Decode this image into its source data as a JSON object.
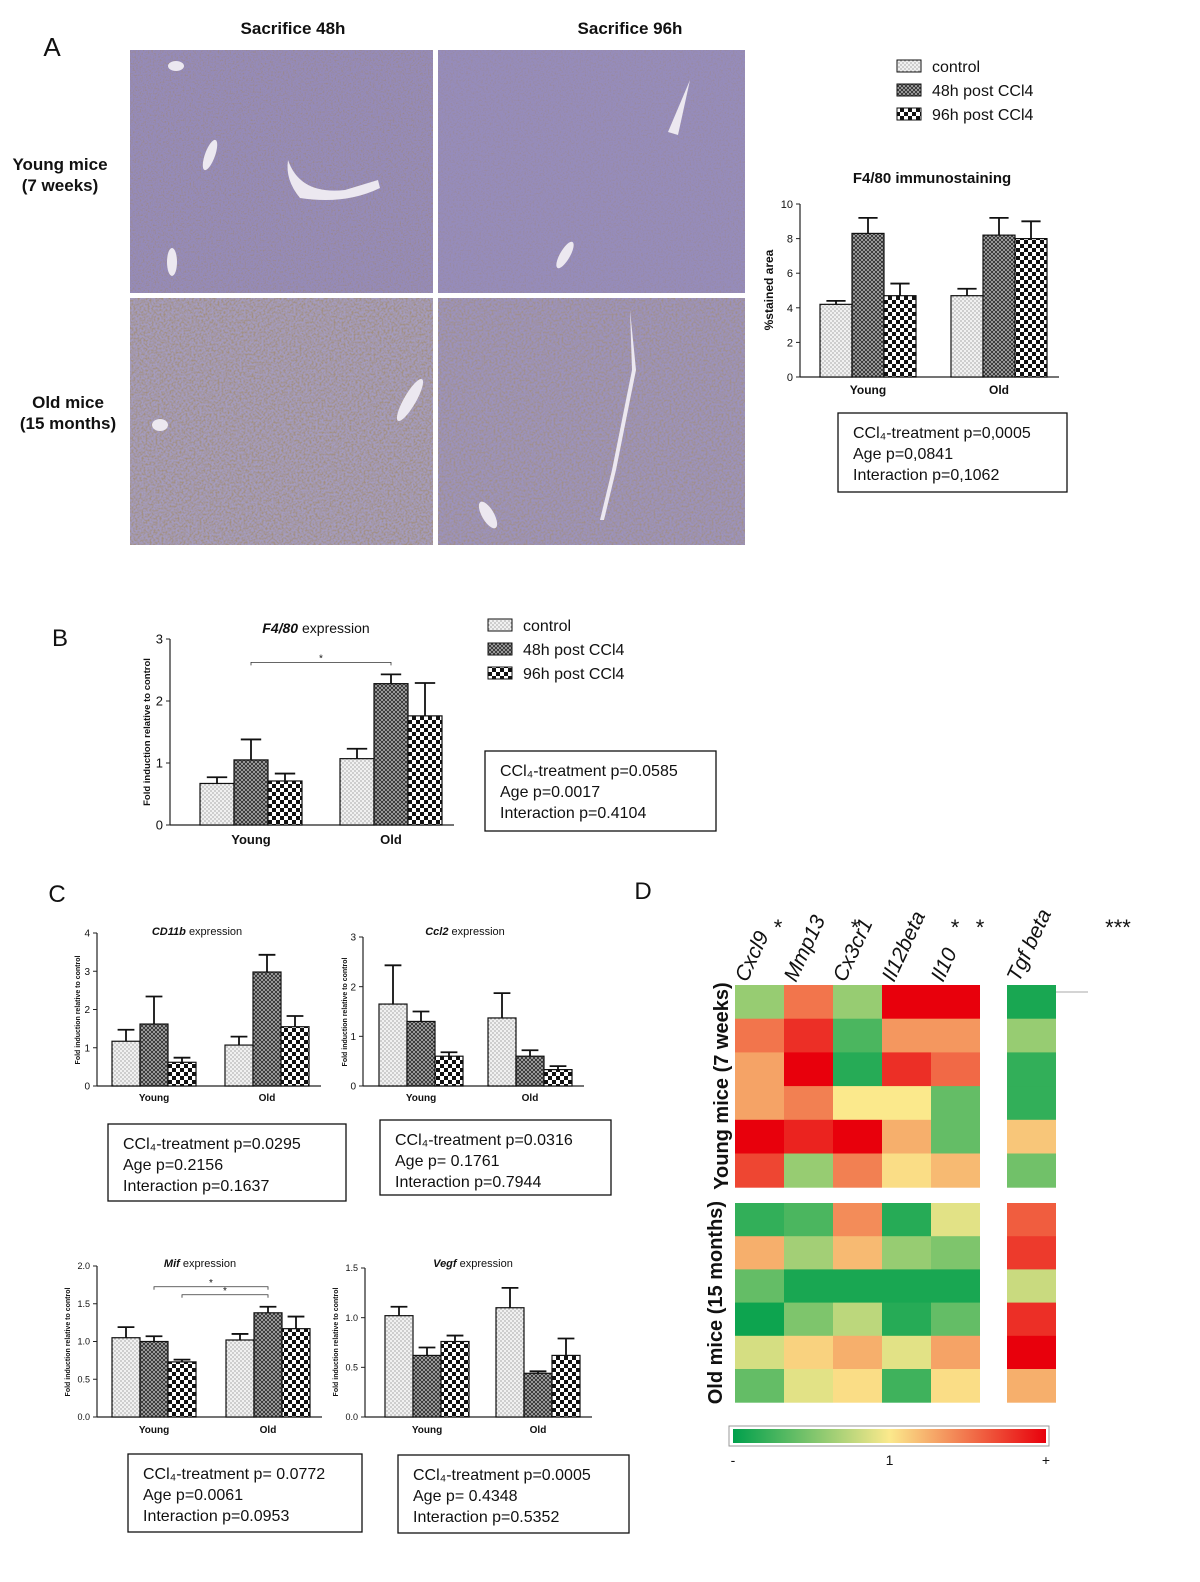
{
  "panel_labels": [
    "A",
    "B",
    "C",
    "D"
  ],
  "micrographs": {
    "columns": [
      "Sacrifice 48h",
      "Sacrifice 96h"
    ],
    "rows": [
      [
        "Young mice",
        "(7 weeks)"
      ],
      [
        "Old mice",
        "(15 months)"
      ]
    ]
  },
  "chart_data": [
    {
      "type": "bar",
      "title": "F4/80 immunostaining",
      "ylabel": "%stained area",
      "categories": [
        "Young",
        "Old"
      ],
      "series": [
        {
          "name": "control",
          "pattern": "dots",
          "values": [
            4.2,
            4.7
          ],
          "errors": [
            0.2,
            0.4
          ]
        },
        {
          "name": "48h post CCl4",
          "pattern": "cross",
          "values": [
            8.3,
            8.2
          ],
          "errors": [
            0.9,
            1.0
          ]
        },
        {
          "name": "96h post CCl4",
          "pattern": "checker",
          "values": [
            4.7,
            8.0
          ],
          "errors": [
            0.7,
            1.0
          ]
        }
      ],
      "legend": true,
      "ylim": [
        0,
        10
      ],
      "yticks": [
        0,
        2,
        4,
        6,
        8,
        10
      ],
      "annotations": [
        "CCl₄-treatment p=0,0005",
        "Age p=0,0841",
        "Interaction p=0,1062"
      ]
    },
    {
      "type": "bar",
      "title": {
        "gene": "F4/80",
        "text": "expression"
      },
      "ylabel": "Fold induction relative to control",
      "categories": [
        "Young",
        "Old"
      ],
      "series": [
        {
          "name": "control",
          "pattern": "dots",
          "values": [
            0.67,
            1.07
          ],
          "errors": [
            0.1,
            0.16
          ]
        },
        {
          "name": "48h post CCl4",
          "pattern": "cross",
          "values": [
            1.05,
            2.28
          ],
          "errors": [
            0.33,
            0.15
          ]
        },
        {
          "name": "96h post CCl4",
          "pattern": "checker",
          "values": [
            0.71,
            1.76
          ],
          "errors": [
            0.12,
            0.53
          ]
        }
      ],
      "legend": true,
      "ylim": [
        0,
        3
      ],
      "yticks": [
        0,
        1,
        2,
        3
      ],
      "significance": [
        {
          "from": [
            0,
            1
          ],
          "to": [
            1,
            1
          ],
          "label": "*"
        }
      ],
      "annotations": [
        "CCl₄-treatment p=0.0585",
        "Age p=0.0017",
        "Interaction p=0.4104"
      ]
    },
    {
      "type": "bar",
      "title": {
        "gene": "CD11b",
        "text": "expression"
      },
      "ylabel": "Fold induction relative to control",
      "categories": [
        "Young",
        "Old"
      ],
      "series": [
        {
          "pattern": "dots",
          "values": [
            1.17,
            1.07
          ],
          "errors": [
            0.3,
            0.22
          ]
        },
        {
          "pattern": "cross",
          "values": [
            1.62,
            2.98
          ],
          "errors": [
            0.72,
            0.45
          ]
        },
        {
          "pattern": "checker",
          "values": [
            0.62,
            1.55
          ],
          "errors": [
            0.12,
            0.28
          ]
        }
      ],
      "legend": false,
      "ylim": [
        0,
        4
      ],
      "yticks": [
        0,
        1,
        2,
        3,
        4
      ],
      "annotations": [
        "CCl₄-treatment  p=0.0295",
        "Age p=0.2156",
        "Interaction p=0.1637"
      ]
    },
    {
      "type": "bar",
      "title": {
        "gene": "Ccl2",
        "text": "expression"
      },
      "ylabel": "Fold induction relative to control",
      "categories": [
        "Young",
        "Old"
      ],
      "series": [
        {
          "pattern": "dots",
          "values": [
            1.65,
            1.37
          ],
          "errors": [
            0.78,
            0.5
          ]
        },
        {
          "pattern": "cross",
          "values": [
            1.3,
            0.6
          ],
          "errors": [
            0.2,
            0.12
          ]
        },
        {
          "pattern": "checker",
          "values": [
            0.6,
            0.33
          ],
          "errors": [
            0.08,
            0.07
          ]
        }
      ],
      "legend": false,
      "ylim": [
        0,
        3
      ],
      "yticks": [
        0,
        1,
        2,
        3
      ],
      "annotations": [
        "CCl₄-treatment p=0.0316",
        "Age p= 0.1761",
        "Interaction p=0.7944"
      ]
    },
    {
      "type": "bar",
      "title": {
        "gene": "Mif",
        "text": "expression"
      },
      "ylabel": "Fold induction relative to control",
      "categories": [
        "Young",
        "Old"
      ],
      "series": [
        {
          "pattern": "dots",
          "values": [
            1.05,
            1.02
          ],
          "errors": [
            0.14,
            0.08
          ]
        },
        {
          "pattern": "cross",
          "values": [
            1.0,
            1.38
          ],
          "errors": [
            0.07,
            0.08
          ]
        },
        {
          "pattern": "checker",
          "values": [
            0.73,
            1.17
          ],
          "errors": [
            0.03,
            0.16
          ]
        }
      ],
      "legend": false,
      "ylim": [
        0,
        2
      ],
      "yticks": [
        {
          "value": 0,
          "label": "0.0"
        },
        {
          "value": 0.5,
          "label": "0.5"
        },
        {
          "value": 1,
          "label": "1.0"
        },
        {
          "value": 1.5,
          "label": "1.5"
        },
        {
          "value": 2,
          "label": "2.0"
        }
      ],
      "significance": [
        {
          "from": [
            0,
            1
          ],
          "to": [
            1,
            1
          ],
          "label": "*"
        },
        {
          "from": [
            0,
            2
          ],
          "to": [
            1,
            1
          ],
          "label": "*"
        }
      ],
      "annotations": [
        "CCl₄-treatment p= 0.0772",
        "Age p=0.0061",
        "Interaction p=0.0953"
      ]
    },
    {
      "type": "bar",
      "title": {
        "gene": "Vegf",
        "text": "expression"
      },
      "ylabel": "Fold induction relative to control",
      "categories": [
        "Young",
        "Old"
      ],
      "series": [
        {
          "pattern": "dots",
          "values": [
            1.02,
            1.1
          ],
          "errors": [
            0.09,
            0.2
          ]
        },
        {
          "pattern": "cross",
          "values": [
            0.62,
            0.44
          ],
          "errors": [
            0.08,
            0.02
          ]
        },
        {
          "pattern": "checker",
          "values": [
            0.76,
            0.62
          ],
          "errors": [
            0.06,
            0.17
          ]
        }
      ],
      "legend": false,
      "ylim": [
        0,
        1.5
      ],
      "yticks": [
        {
          "value": 0,
          "label": "0.0"
        },
        {
          "value": 0.5,
          "label": "0.5"
        },
        {
          "value": 1,
          "label": "1.0"
        },
        {
          "value": 1.5,
          "label": "1.5"
        }
      ],
      "annotations": [
        "CCl₄-treatment p=0.0005",
        "Age p= 0.4348",
        "Interaction p=0.5352"
      ]
    },
    {
      "type": "heatmap",
      "columns": [
        "Cxcl9",
        "Mmp13",
        "Cx3cr1",
        "Il12beta",
        "Il10",
        "Tgf beta"
      ],
      "column_marks": [
        "*",
        "*",
        null,
        "*",
        "*",
        "***"
      ],
      "groups": [
        {
          "label": "Young mice  (7 weeks)",
          "values": [
            [
              0.6,
              1.5,
              0.6,
              2.0,
              2.0,
              0.1
            ],
            [
              1.5,
              1.8,
              0.3,
              1.35,
              1.35,
              0.6
            ],
            [
              1.3,
              2.0,
              0.15,
              1.8,
              1.55,
              0.2
            ],
            [
              1.3,
              1.45,
              1.0,
              1.0,
              0.4,
              0.2
            ],
            [
              2.0,
              1.85,
              2.0,
              1.25,
              0.4,
              1.15
            ],
            [
              1.7,
              0.6,
              1.45,
              1.05,
              1.2,
              0.45
            ]
          ]
        },
        {
          "label": "Old mice (15 months)",
          "values": [
            [
              0.2,
              0.3,
              1.4,
              0.15,
              0.9,
              1.6
            ],
            [
              1.25,
              0.65,
              1.2,
              0.6,
              0.5,
              1.75
            ],
            [
              0.4,
              0.1,
              0.1,
              0.1,
              0.1,
              0.8
            ],
            [
              0.05,
              0.5,
              0.75,
              0.15,
              0.4,
              1.8
            ],
            [
              0.85,
              1.1,
              1.25,
              0.9,
              1.3,
              2.0
            ],
            [
              0.4,
              0.9,
              1.05,
              0.25,
              1.05,
              1.25
            ]
          ]
        }
      ],
      "zlim": [
        0,
        2
      ],
      "zticks": [
        {
          "value": 0,
          "label": "-"
        },
        1,
        {
          "value": 2,
          "label": "+"
        }
      ],
      "colors": [
        "#00a04c",
        "#fbe98c",
        "#e8000c"
      ]
    }
  ]
}
